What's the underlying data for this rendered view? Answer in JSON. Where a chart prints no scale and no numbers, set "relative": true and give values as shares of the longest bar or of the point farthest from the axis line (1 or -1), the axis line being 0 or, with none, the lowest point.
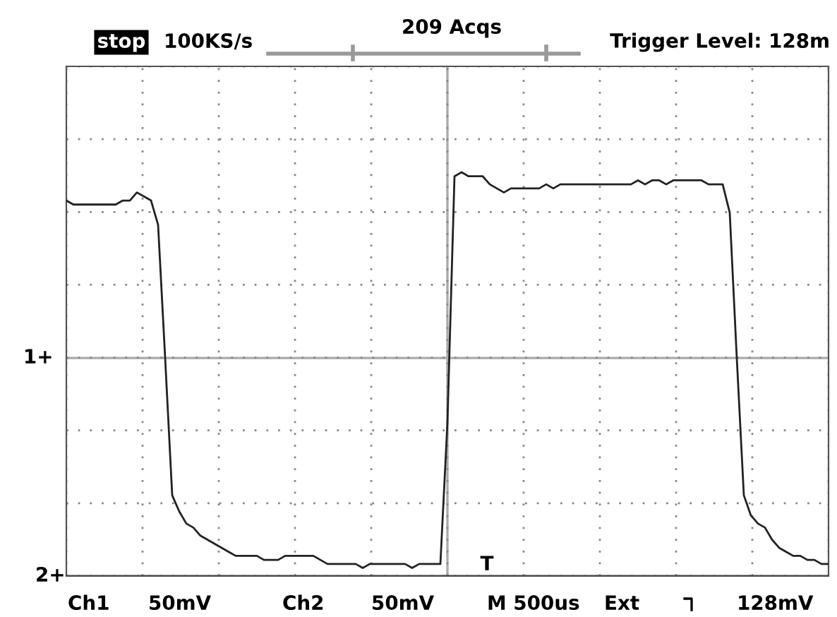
{
  "chart_data": {
    "type": "line",
    "relative": true,
    "grid": true,
    "tick_labels": false,
    "marker": "none",
    "line_style": "solid",
    "categories": [
      null,
      null,
      null,
      null,
      null,
      null,
      null,
      null,
      null,
      null,
      null,
      null,
      null,
      null,
      null,
      null,
      null,
      null,
      null,
      null,
      null,
      null,
      null,
      null,
      null,
      null,
      null,
      null,
      null,
      null,
      null,
      null,
      null,
      null,
      null,
      null,
      null,
      null,
      null,
      null,
      null,
      null,
      null,
      null,
      null,
      null,
      null,
      null,
      null,
      null,
      null,
      null,
      null,
      null,
      null,
      null,
      null,
      null,
      null,
      null,
      null,
      null,
      null,
      null,
      null,
      null,
      null,
      null,
      null,
      null,
      null,
      null,
      null,
      null,
      null,
      null,
      null,
      null,
      null,
      null,
      null,
      null,
      null,
      null,
      null,
      null,
      null,
      null,
      null,
      null,
      null,
      null,
      null,
      null,
      null,
      null,
      null,
      null,
      null,
      null,
      null,
      null,
      null,
      null,
      null,
      null,
      null,
      null,
      null
    ],
    "series": [
      {
        "color": "#222222",
        "values": [
          0.93,
          0.92,
          0.92,
          0.92,
          0.92,
          0.92,
          0.92,
          0.92,
          0.93,
          0.93,
          0.95,
          0.94,
          0.93,
          0.87,
          0.54,
          0.2,
          0.16,
          0.13,
          0.12,
          0.1,
          0.09,
          0.08,
          0.07,
          0.06,
          0.05,
          0.05,
          0.05,
          0.05,
          0.04,
          0.04,
          0.04,
          0.05,
          0.05,
          0.05,
          0.05,
          0.05,
          0.04,
          0.03,
          0.03,
          0.03,
          0.03,
          0.03,
          0.02,
          0.03,
          0.03,
          0.03,
          0.03,
          0.03,
          0.03,
          0.02,
          0.03,
          0.03,
          0.03,
          0.03,
          0.38,
          0.99,
          1.0,
          0.99,
          0.99,
          0.99,
          0.97,
          0.96,
          0.95,
          0.96,
          0.96,
          0.96,
          0.96,
          0.96,
          0.97,
          0.96,
          0.97,
          0.97,
          0.97,
          0.97,
          0.97,
          0.97,
          0.97,
          0.97,
          0.97,
          0.97,
          0.97,
          0.98,
          0.97,
          0.98,
          0.98,
          0.97,
          0.98,
          0.98,
          0.98,
          0.98,
          0.98,
          0.97,
          0.97,
          0.97,
          0.9,
          0.54,
          0.2,
          0.15,
          0.13,
          0.12,
          0.09,
          0.07,
          0.06,
          0.05,
          0.05,
          0.04,
          0.04,
          0.03,
          0.03
        ]
      },
      {
        "color": "#444444",
        "values": [
          0,
          0,
          0,
          0,
          0,
          0,
          0,
          0,
          0,
          0,
          0,
          0,
          0,
          0,
          0,
          0,
          0,
          0,
          0,
          0,
          0,
          0,
          0,
          0,
          0,
          0,
          0,
          0,
          0,
          0,
          0,
          0,
          0,
          0,
          0,
          0,
          0,
          0,
          0,
          0,
          0,
          0,
          0,
          0,
          0,
          0,
          0,
          0,
          0,
          0,
          0,
          0,
          0,
          0,
          0,
          0,
          0,
          0,
          0,
          0,
          0,
          0,
          0,
          0,
          0,
          0,
          0,
          0,
          0,
          0,
          0,
          0,
          0,
          0,
          0,
          0,
          0,
          0,
          0,
          0,
          0,
          0,
          0,
          0,
          0,
          0,
          0,
          0,
          0,
          0,
          0,
          0,
          0,
          0,
          0,
          0,
          0,
          0,
          0,
          0,
          0,
          0,
          0,
          0,
          0,
          0,
          0,
          0,
          0
        ]
      }
    ],
    "ref_lines": [
      {
        "axis": "y",
        "value": 0.54,
        "label": "1+",
        "color": "#aaaaaa"
      }
    ],
    "annotations": [
      "stop",
      "100KS/s",
      "209 Acqs",
      "Trigger Level: 128m",
      "Ch1",
      "50mV",
      "Ch2",
      "50mV",
      "M 500us",
      "Ext",
      "128mV",
      "2+",
      "T"
    ]
  }
}
